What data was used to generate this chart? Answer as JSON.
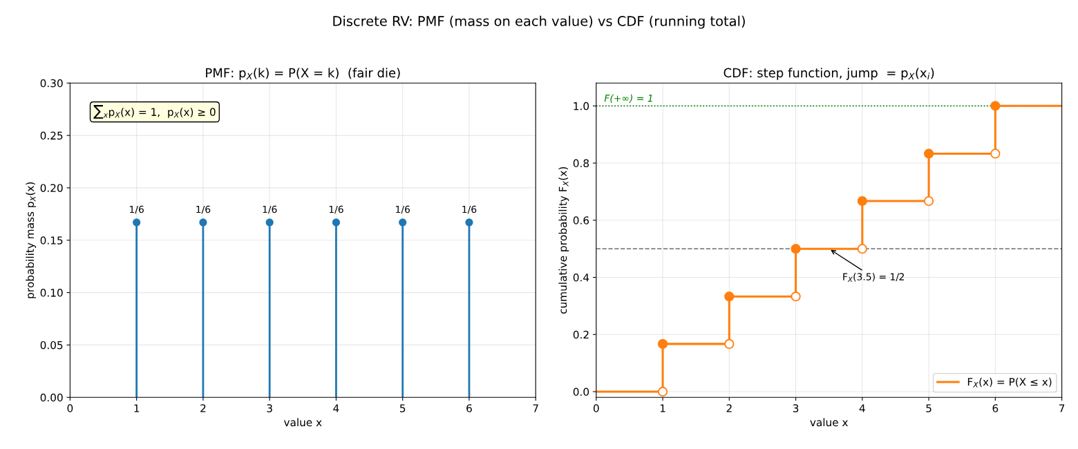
{
  "chart_data": [
    {
      "type": "lollipop",
      "title": "PMF: p$_{X}$(k) = P(X = k)  (fair die)",
      "xlabel": "value x",
      "ylabel": "probability mass p$_{X}$(x)",
      "annotations": [
        "Discrete RV: PMF (mass on each value) vs CDF (running total)",
        "∑$_{x}$p$_{X}$(x) = 1,  p$_{X}$(x) ≥ 0"
      ],
      "x": [
        1,
        2,
        3,
        4,
        5,
        6
      ],
      "series": [
        {
          "color": "#1f77b4",
          "values": [
            0.167,
            0.167,
            0.167,
            0.167,
            0.167,
            0.167
          ],
          "value_labels": [
            "1/6",
            "1/6",
            "1/6",
            "1/6",
            "1/6",
            "1/6"
          ]
        }
      ],
      "marker": "circle",
      "xlim": [
        0,
        7
      ],
      "xticks": [
        0,
        1,
        2,
        3,
        4,
        5,
        6,
        7
      ],
      "ylim": [
        0,
        0.3
      ],
      "yticks": [
        {
          "value": 0,
          "label": "0.00"
        },
        {
          "value": 0.05,
          "label": "0.05"
        },
        {
          "value": 0.1,
          "label": "0.10"
        },
        {
          "value": 0.15,
          "label": "0.15"
        },
        {
          "value": 0.2,
          "label": "0.20"
        },
        {
          "value": 0.25,
          "label": "0.25"
        },
        {
          "value": 0.3,
          "label": "0.30"
        }
      ],
      "grid": true
    },
    {
      "type": "step",
      "title": "CDF: step function, jump  = p$_{X}$(x$_{i}$)",
      "xlabel": "value x",
      "ylabel": "cumulative probability F$_{X}$(x)",
      "annotations": [
        {
          "text": "F$_{X}$(3.5) = 1/2",
          "x": 3.5,
          "y": 0.5
        }
      ],
      "series": [
        {
          "name": "F$_{X}$(x) = P(X ≤ x)",
          "color": "#ff7f0e",
          "x": [
            0,
            1,
            2,
            3,
            4,
            5,
            6,
            7
          ],
          "values": [
            0,
            0.167,
            0.333,
            0.5,
            0.667,
            0.833,
            1,
            1
          ]
        },
        {
          "type": "scatter",
          "color": "#ff7f0e",
          "marker": "circle",
          "x": [
            1,
            2,
            3,
            4,
            5,
            6
          ],
          "values": [
            0.167,
            0.333,
            0.5,
            0.667,
            0.833,
            1
          ]
        },
        {
          "type": "scatter",
          "color": "#ffffff",
          "marker": "circle",
          "x": [
            1,
            2,
            3,
            4,
            5,
            6
          ],
          "values": [
            0,
            0.167,
            0.333,
            0.5,
            0.667,
            0.833
          ]
        }
      ],
      "ref_lines": [
        {
          "axis": "y",
          "value": 1,
          "label": "F(+∞) = 1",
          "color": "#008000",
          "line_style": "dotted"
        },
        {
          "axis": "y",
          "value": 0.5,
          "color": "#808080",
          "line_style": "dashed"
        }
      ],
      "xlim": [
        0,
        7
      ],
      "xticks": [
        0,
        1,
        2,
        3,
        4,
        5,
        6,
        7
      ],
      "ylim": [
        -0.02,
        1.08
      ],
      "yticks": [
        {
          "value": 0,
          "label": "0.0"
        },
        {
          "value": 0.2,
          "label": "0.2"
        },
        {
          "value": 0.4,
          "label": "0.4"
        },
        {
          "value": 0.6,
          "label": "0.6"
        },
        {
          "value": 0.8,
          "label": "0.8"
        },
        {
          "value": 1,
          "label": "1.0"
        }
      ],
      "grid": true,
      "legend": "bottom right"
    }
  ]
}
